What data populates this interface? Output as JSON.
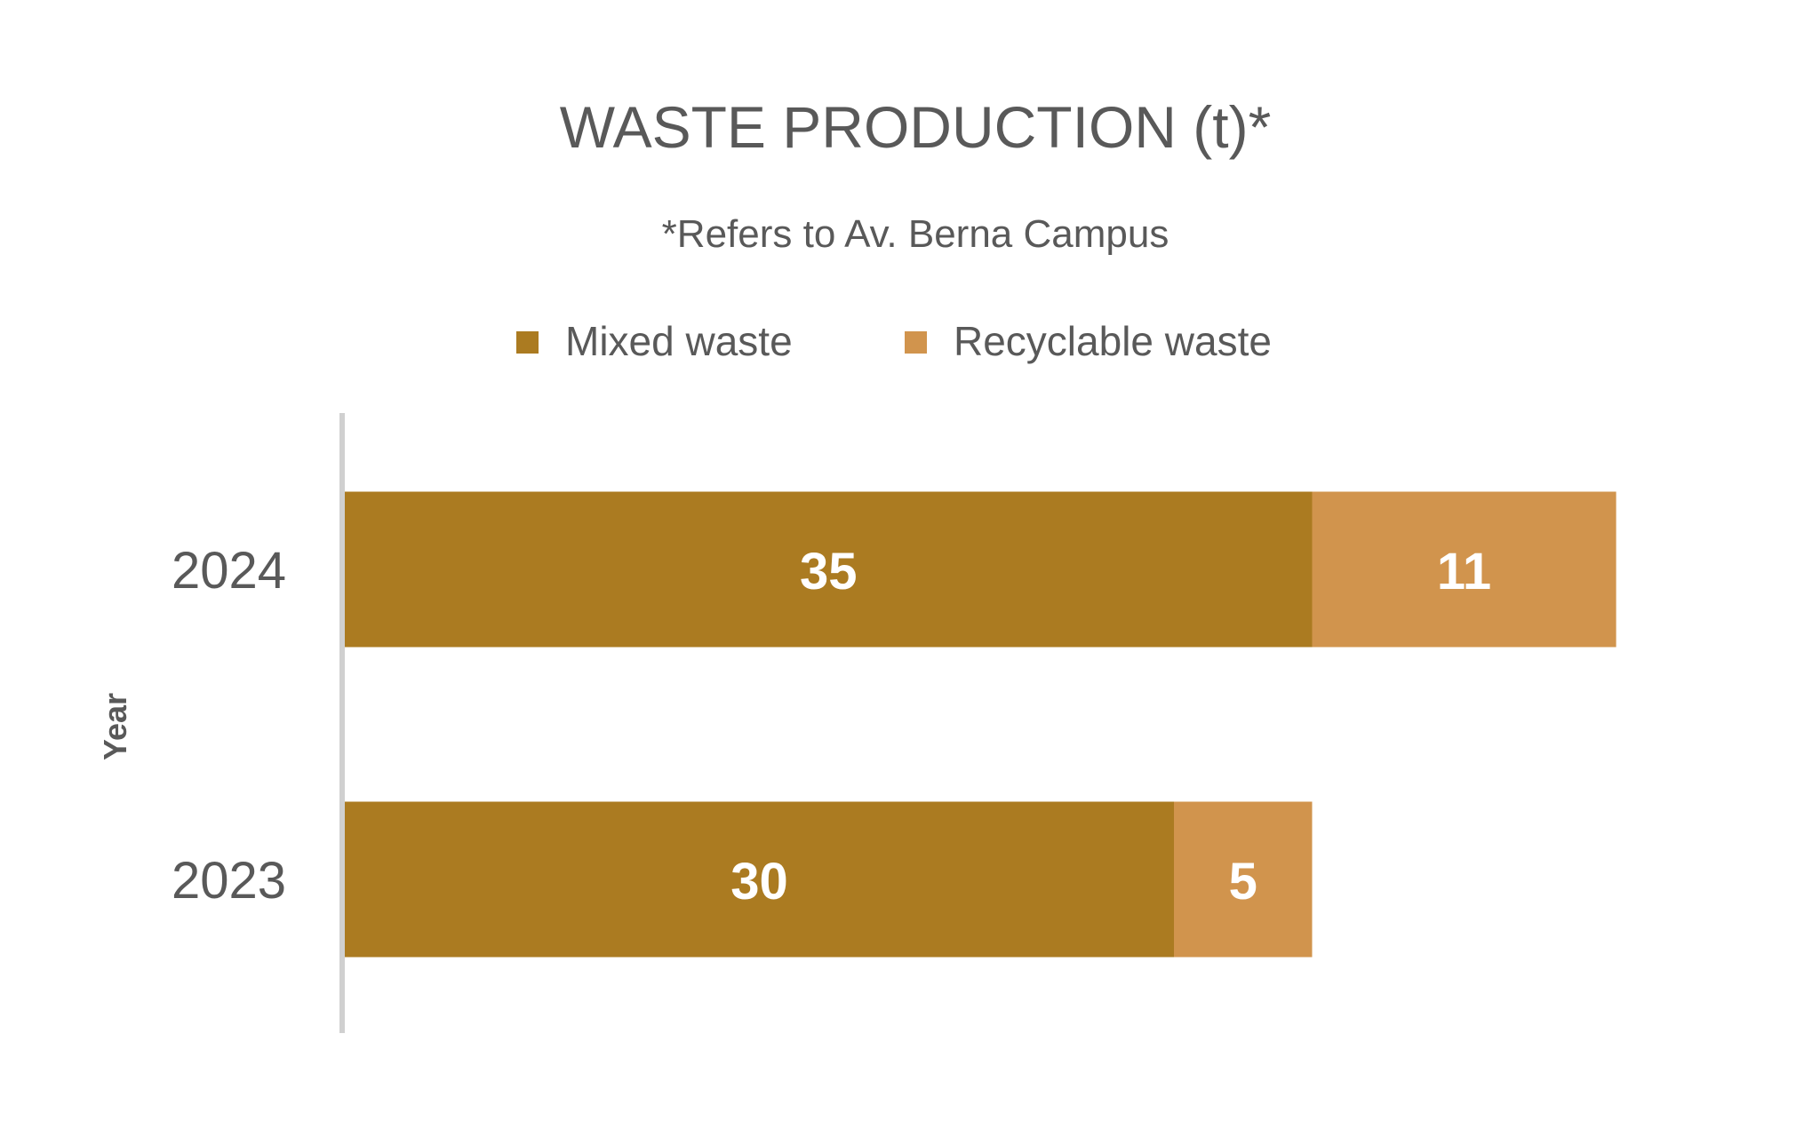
{
  "chart_data": {
    "type": "bar",
    "orientation": "horizontal",
    "stacked": true,
    "title": "WASTE PRODUCTION (t)*",
    "subtitle": "*Refers to Av. Berna Campus",
    "ylabel": "Year",
    "xlabel": "",
    "categories": [
      "2024",
      "2023"
    ],
    "series": [
      {
        "name": "Mixed waste",
        "values": [
          35,
          30
        ],
        "color": "#AB7B21"
      },
      {
        "name": "Recyclable waste",
        "values": [
          11,
          5
        ],
        "color": "#D1944D"
      }
    ],
    "xlim": [
      0,
      50
    ],
    "legend": "top",
    "grid": false,
    "data_labels": true,
    "colors": {
      "text": "#595959",
      "axis_line": "#D0D0D0",
      "data_label": "#FFFFFF"
    }
  }
}
